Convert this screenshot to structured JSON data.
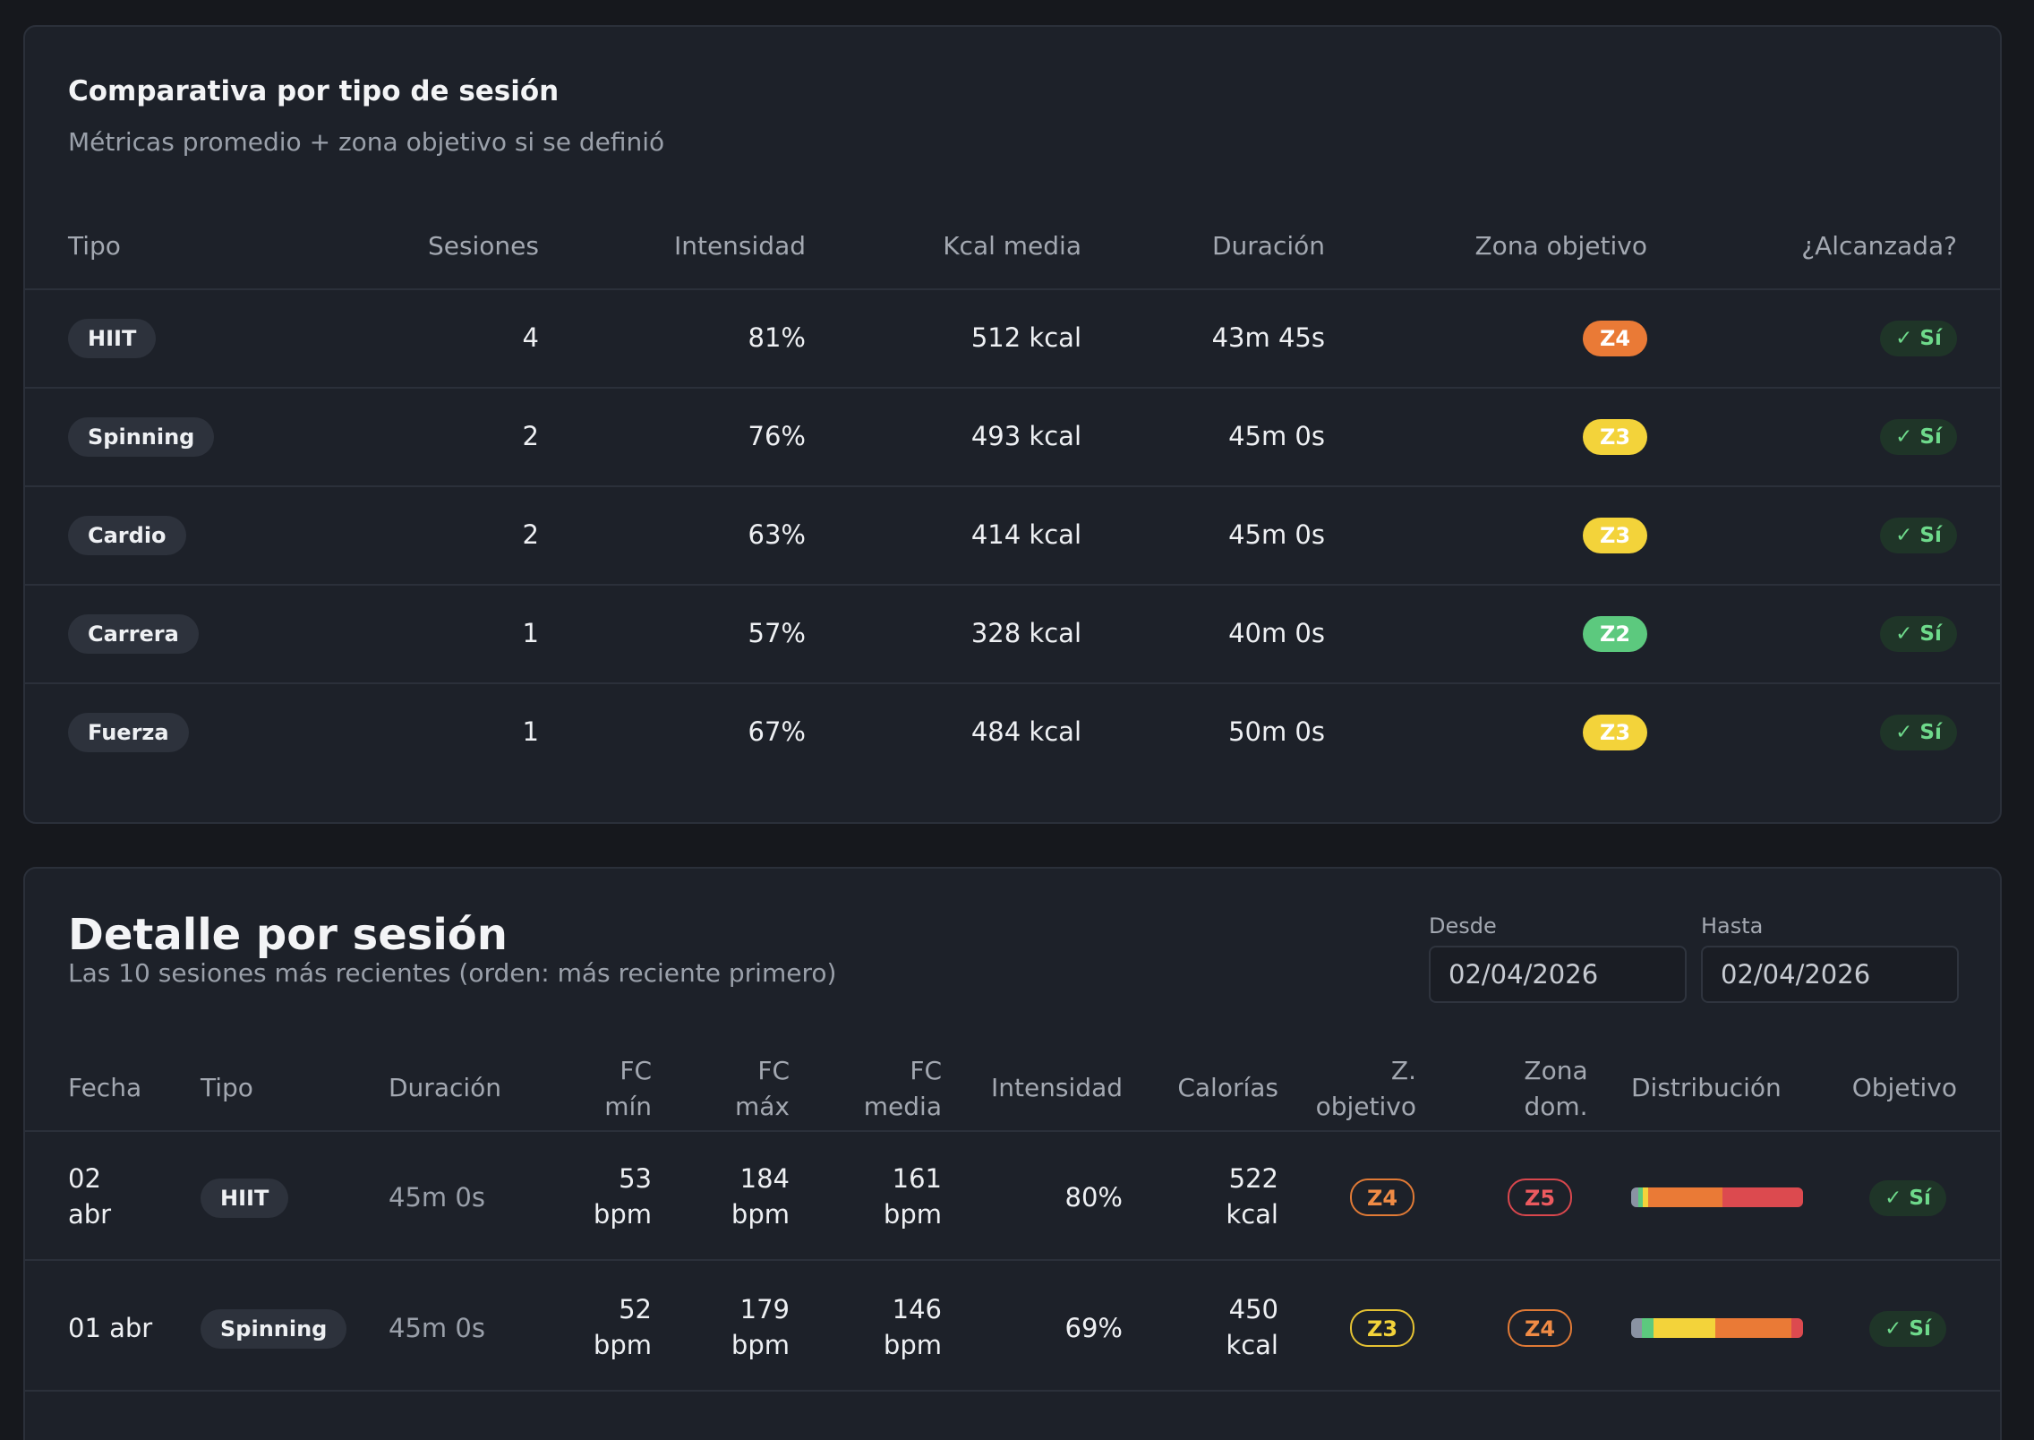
{
  "comparativa": {
    "title": "Comparativa por tipo de sesión",
    "subtitle": "Métricas promedio + zona objetivo si se definió",
    "headers": {
      "tipo": "Tipo",
      "sesiones": "Sesiones",
      "intensidad": "Intensidad",
      "kcal": "Kcal media",
      "duracion": "Duración",
      "zona": "Zona objetivo",
      "alcanzada": "¿Alcanzada?"
    },
    "rows": [
      {
        "tipo": "HIIT",
        "sesiones": "4",
        "intensidad": "81%",
        "kcal": "512 kcal",
        "duracion": "43m 45s",
        "zona": "Z4",
        "alcanzada": "✓ Sí"
      },
      {
        "tipo": "Spinning",
        "sesiones": "2",
        "intensidad": "76%",
        "kcal": "493 kcal",
        "duracion": "45m 0s",
        "zona": "Z3",
        "alcanzada": "✓ Sí"
      },
      {
        "tipo": "Cardio",
        "sesiones": "2",
        "intensidad": "63%",
        "kcal": "414 kcal",
        "duracion": "45m 0s",
        "zona": "Z3",
        "alcanzada": "✓ Sí"
      },
      {
        "tipo": "Carrera",
        "sesiones": "1",
        "intensidad": "57%",
        "kcal": "328 kcal",
        "duracion": "40m 0s",
        "zona": "Z2",
        "alcanzada": "✓ Sí"
      },
      {
        "tipo": "Fuerza",
        "sesiones": "1",
        "intensidad": "67%",
        "kcal": "484 kcal",
        "duracion": "50m 0s",
        "zona": "Z3",
        "alcanzada": "✓ Sí"
      }
    ]
  },
  "detalle": {
    "title": "Detalle por sesión",
    "subtitle": "Las 10 sesiones más recientes (orden: más reciente primero)",
    "desde_label": "Desde",
    "desde_value": "02/04/2026",
    "hasta_label": "Hasta",
    "hasta_value": "02/04/2026",
    "headers": {
      "fecha": "Fecha",
      "tipo": "Tipo",
      "duracion": "Duración",
      "fc_min_1": "FC",
      "fc_min_2": "mín",
      "fc_max_1": "FC",
      "fc_max_2": "máx",
      "fc_media_1": "FC",
      "fc_media_2": "media",
      "intensidad": "Intensidad",
      "calorias": "Calorías",
      "zobj_1": "Z.",
      "zobj_2": "objetivo",
      "zdom_1": "Zona",
      "zdom_2": "dom.",
      "distribucion": "Distribución",
      "objetivo": "Objetivo"
    },
    "rows": [
      {
        "fecha_1": "02",
        "fecha_2": "abr",
        "tipo": "HIIT",
        "duracion": "45m 0s",
        "fc_min": "53",
        "fc_max": "184",
        "fc_media": "161",
        "unit_bpm": "bpm",
        "intensidad": "80%",
        "calorias": "522",
        "unit_kcal": "kcal",
        "zona_obj": "Z4",
        "zona_dom": "Z5",
        "objetivo": "✓ Sí",
        "distribucion": [
          0.04,
          0.03,
          0.03,
          0.43,
          0.47
        ]
      },
      {
        "fecha_1": "01 abr",
        "fecha_2": "",
        "tipo": "Spinning",
        "duracion": "45m 0s",
        "fc_min": "52",
        "fc_max": "179",
        "fc_media": "146",
        "unit_bpm": "bpm",
        "intensidad": "69%",
        "calorias": "450",
        "unit_kcal": "kcal",
        "zona_obj": "Z3",
        "zona_dom": "Z4",
        "objetivo": "✓ Sí",
        "distribucion": [
          0.06,
          0.07,
          0.36,
          0.44,
          0.07
        ]
      }
    ]
  },
  "colors": {
    "z1": "#8a93a3",
    "z2": "#5cc97e",
    "z3": "#f3d33a",
    "z4": "#ea7a36",
    "z5": "#dc4a4f"
  }
}
